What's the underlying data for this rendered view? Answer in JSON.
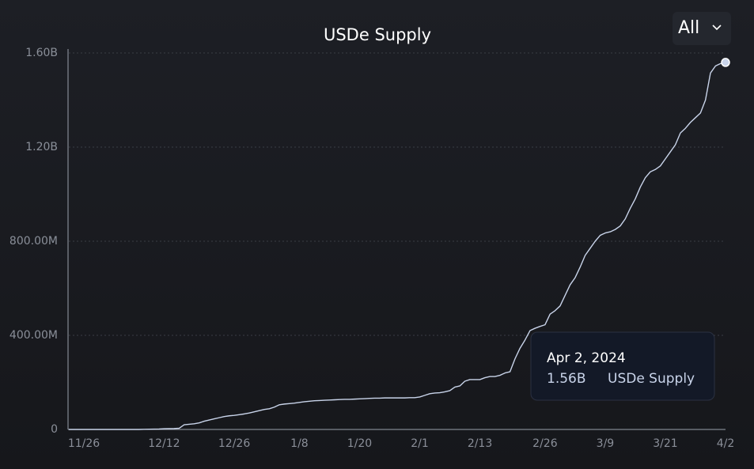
{
  "chart_data": {
    "type": "line",
    "title": "USDe Supply",
    "categories": [
      null,
      null,
      null,
      "11/26",
      null,
      null,
      null,
      null,
      null,
      null,
      null,
      null,
      null,
      null,
      null,
      null,
      null,
      null,
      null,
      "12/12",
      null,
      null,
      null,
      null,
      null,
      null,
      null,
      null,
      null,
      null,
      null,
      null,
      null,
      "12/26",
      null,
      null,
      null,
      null,
      null,
      null,
      null,
      null,
      null,
      null,
      null,
      null,
      "1/8",
      null,
      null,
      null,
      null,
      null,
      null,
      null,
      null,
      null,
      null,
      null,
      "1/20",
      null,
      null,
      null,
      null,
      null,
      null,
      null,
      null,
      null,
      null,
      null,
      "2/1",
      null,
      null,
      null,
      null,
      null,
      null,
      null,
      null,
      null,
      null,
      null,
      "2/13",
      null,
      null,
      null,
      null,
      null,
      null,
      null,
      null,
      null,
      null,
      null,
      null,
      "2/26",
      null,
      null,
      null,
      null,
      null,
      null,
      null,
      null,
      null,
      null,
      null,
      "3/9",
      null,
      null,
      null,
      null,
      null,
      null,
      null,
      null,
      null,
      null,
      null,
      "3/21",
      null,
      null,
      null,
      null,
      null,
      null,
      null,
      null,
      null,
      null,
      null,
      "4/2"
    ],
    "series": [
      {
        "name": "USDe Supply",
        "color": "#c9d4ea",
        "values": [
          0,
          0,
          0,
          0,
          0,
          0,
          0,
          0,
          0,
          0,
          0,
          0,
          0,
          0,
          0,
          500000.0,
          1000000.0,
          1500000.0,
          2000000.0,
          3000000.0,
          3500000.0,
          4000000.0,
          5000000.0,
          20000000.0,
          22000000.0,
          24000000.0,
          28000000.0,
          35000000.0,
          40000000.0,
          45000000.0,
          50000000.0,
          55000000.0,
          58000000.0,
          60000000.0,
          63000000.0,
          66000000.0,
          70000000.0,
          75000000.0,
          80000000.0,
          85000000.0,
          88000000.0,
          95000000.0,
          105000000.0,
          108000000.0,
          110000000.0,
          112000000.0,
          115000000.0,
          118000000.0,
          120000000.0,
          122000000.0,
          123000000.0,
          124000000.0,
          125000000.0,
          126000000.0,
          127000000.0,
          128000000.0,
          128000000.0,
          129000000.0,
          130000000.0,
          131000000.0,
          132000000.0,
          133000000.0,
          133000000.0,
          134000000.0,
          134000000.0,
          134000000.0,
          134000000.0,
          134000000.0,
          135000000.0,
          135000000.0,
          138000000.0,
          145000000.0,
          152000000.0,
          155000000.0,
          156000000.0,
          160000000.0,
          165000000.0,
          180000000.0,
          185000000.0,
          205000000.0,
          212000000.0,
          212000000.0,
          212000000.0,
          220000000.0,
          225000000.0,
          225000000.0,
          230000000.0,
          240000000.0,
          245000000.0,
          300000000.0,
          345000000.0,
          380000000.0,
          420000000.0,
          430000000.0,
          438000000.0,
          445000000.0,
          490000000.0,
          505000000.0,
          525000000.0,
          570000000.0,
          615000000.0,
          645000000.0,
          690000000.0,
          740000000.0,
          770000000.0,
          800000000.0,
          825000000.0,
          835000000.0,
          840000000.0,
          850000000.0,
          865000000.0,
          895000000.0,
          940000000.0,
          980000000.0,
          1030000000.0,
          1070000000.0,
          1095000000.0,
          1105000000.0,
          1120000000.0,
          1150000000.0,
          1180000000.0,
          1210000000.0,
          1260000000.0,
          1280000000.0,
          1305000000.0,
          1325000000.0,
          1345000000.0,
          1400000000.0,
          1515000000.0,
          1545000000.0,
          1555000000.0,
          1560000000.0
        ]
      }
    ],
    "ylim": [
      0,
      1600000000
    ],
    "yticks": [
      0,
      {
        "value": 400000000,
        "label": "400.00M"
      },
      {
        "value": 800000000,
        "label": "800.00M"
      },
      {
        "value": 1200000000,
        "label": "1.20B"
      },
      {
        "value": 1600000000,
        "label": "1.60B"
      }
    ],
    "grid": true,
    "tooltip": {
      "title": "Apr 2, 2024",
      "value_label": "1.56B"
    },
    "range_selector": "All"
  }
}
